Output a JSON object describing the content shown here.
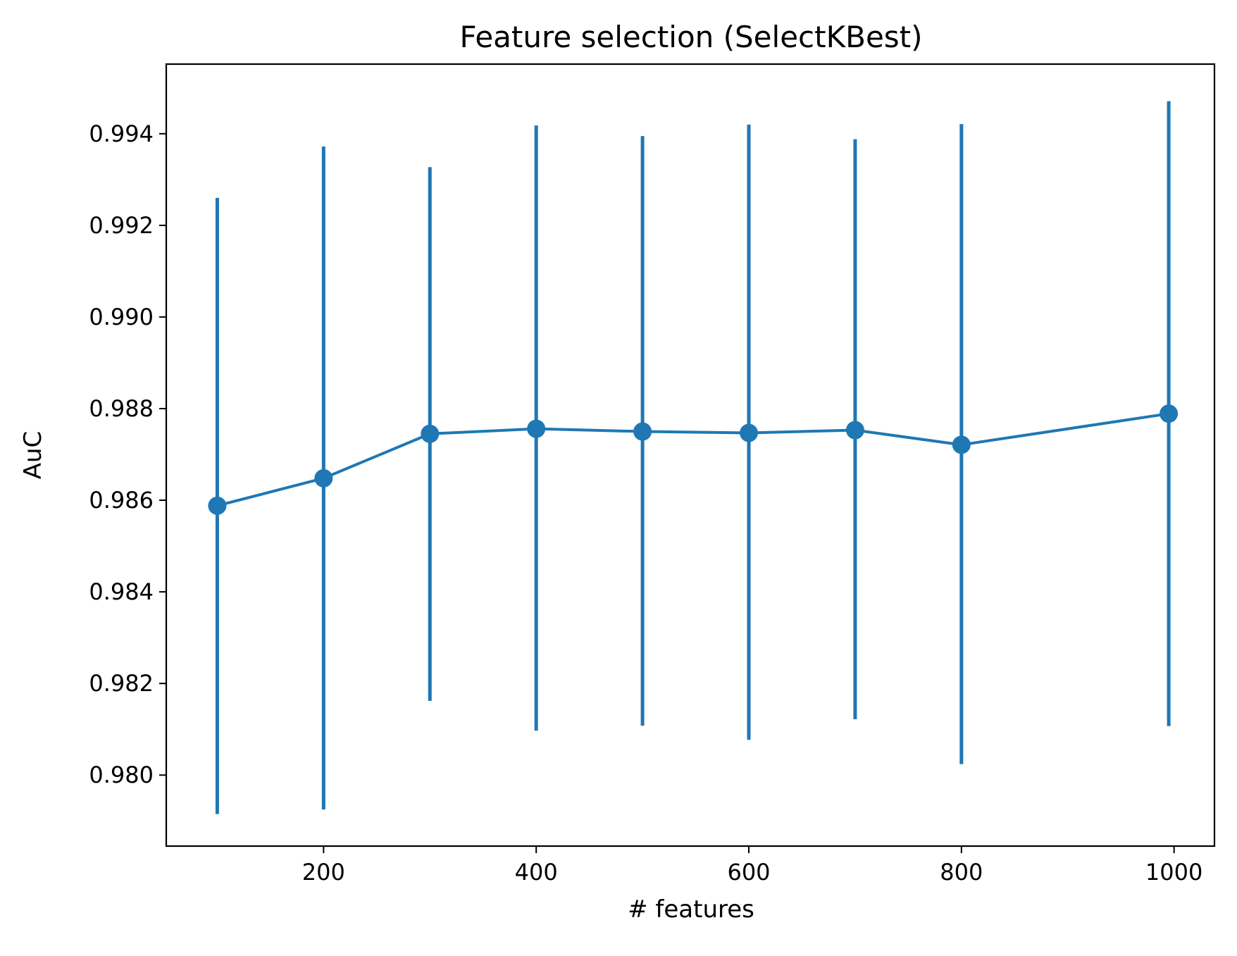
{
  "chart_data": {
    "type": "line",
    "title": "Feature selection (SelectKBest)",
    "xlabel": "# features",
    "ylabel": "AuC",
    "xlim": [
      52,
      1038
    ],
    "ylim": [
      0.97845,
      0.99552
    ],
    "xticks": [
      200,
      400,
      600,
      800,
      1000
    ],
    "yticks": [
      0.98,
      0.982,
      0.984,
      0.986,
      0.988,
      0.99,
      0.992,
      0.994
    ],
    "xtick_labels": [
      "200",
      "400",
      "600",
      "800",
      "1000"
    ],
    "ytick_labels": [
      "0.980",
      "0.982",
      "0.984",
      "0.986",
      "0.988",
      "0.990",
      "0.992",
      "0.994"
    ],
    "grid": false,
    "color": "#1f77b4",
    "series": [
      {
        "x": [
          100,
          200,
          300,
          400,
          500,
          600,
          700,
          800,
          995
        ],
        "y": [
          0.98588,
          0.98648,
          0.98745,
          0.98756,
          0.9875,
          0.98747,
          0.98753,
          0.98721,
          0.98789
        ],
        "err_low": [
          0.97915,
          0.97925,
          0.98162,
          0.98097,
          0.98108,
          0.98077,
          0.98122,
          0.98024,
          0.98107
        ],
        "err_high": [
          0.9926,
          0.99372,
          0.99327,
          0.99418,
          0.99395,
          0.9942,
          0.99388,
          0.99421,
          0.99471
        ]
      }
    ]
  }
}
